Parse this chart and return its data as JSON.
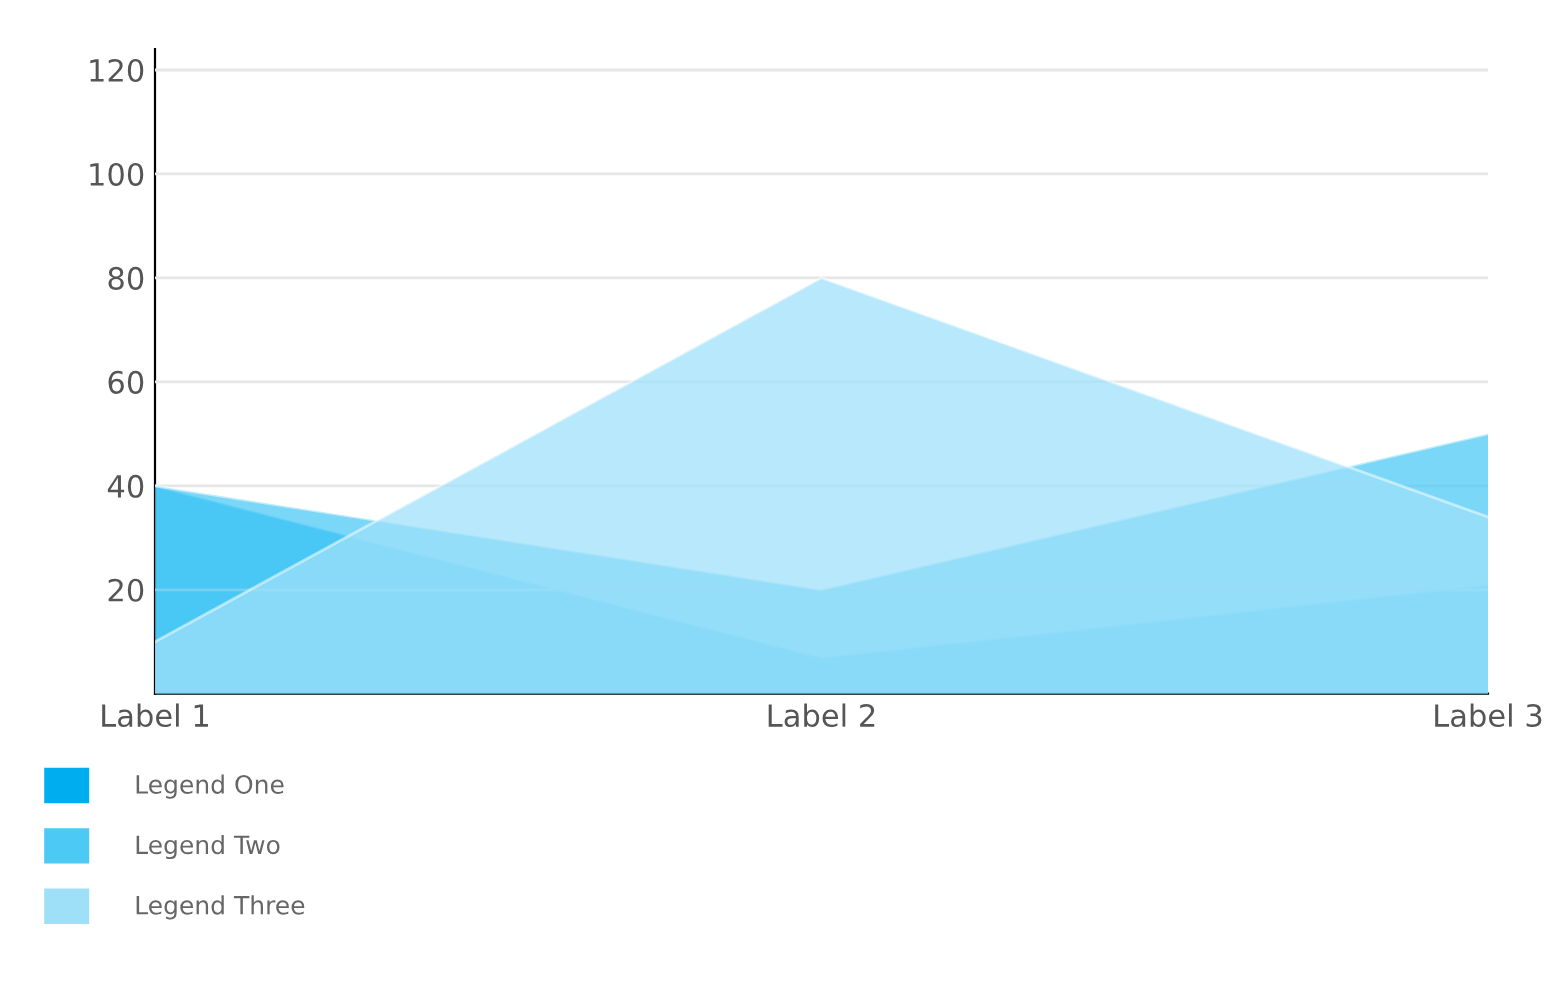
{
  "chart_data": {
    "type": "area",
    "categories": [
      "Label 1",
      "Label 2",
      "Label 3"
    ],
    "series": [
      {
        "name": "Legend One",
        "color": "#00aeef",
        "values": [
          40,
          7,
          21
        ]
      },
      {
        "name": "Legend Two",
        "color": "#4dc9f6",
        "values": [
          40,
          20,
          50
        ]
      },
      {
        "name": "Legend Three",
        "color": "#9fe0f9",
        "values": [
          10,
          80,
          34
        ]
      }
    ],
    "ylim": [
      0,
      124
    ],
    "yticks": [
      20,
      40,
      60,
      80,
      100,
      120
    ],
    "grid": "y",
    "legend": "bottom left"
  }
}
